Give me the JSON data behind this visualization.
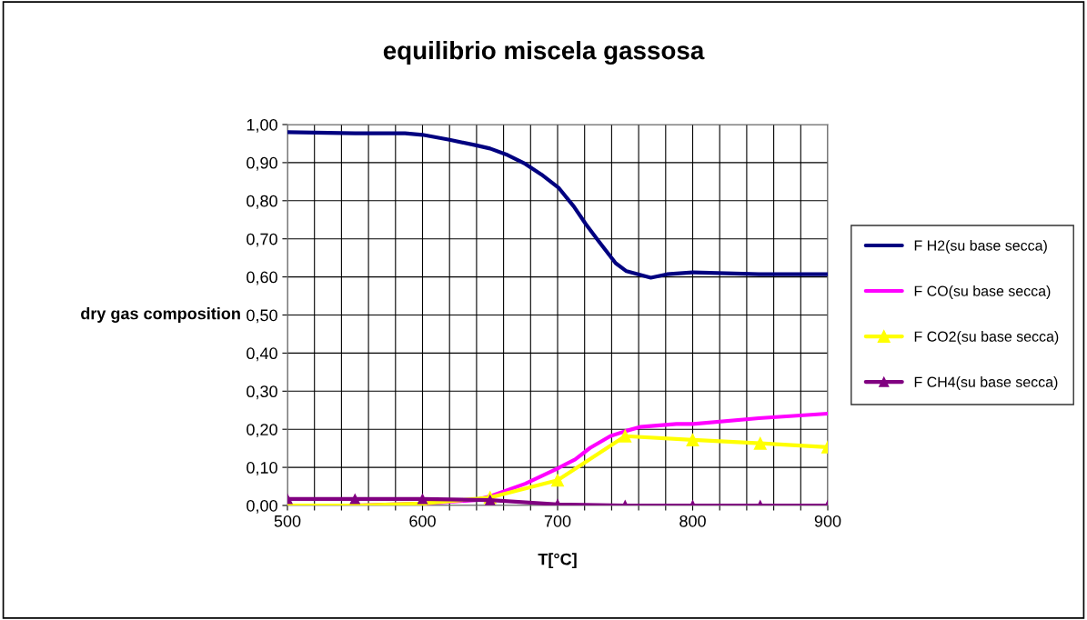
{
  "chart_data": {
    "type": "line",
    "title": "equilibrio miscela gassosa",
    "xlabel": "T[°C]",
    "ylabel": "dry gas composition",
    "xlim": [
      500,
      900
    ],
    "xticks": [
      500,
      {
        "value": 520,
        "label": null
      },
      {
        "value": 540,
        "label": null
      },
      {
        "value": 560,
        "label": null
      },
      {
        "value": 580,
        "label": null
      },
      600,
      {
        "value": 620,
        "label": null
      },
      {
        "value": 640,
        "label": null
      },
      {
        "value": 660,
        "label": null
      },
      {
        "value": 680,
        "label": null
      },
      700,
      {
        "value": 720,
        "label": null
      },
      {
        "value": 740,
        "label": null
      },
      {
        "value": 760,
        "label": null
      },
      {
        "value": 780,
        "label": null
      },
      800,
      {
        "value": 820,
        "label": null
      },
      {
        "value": 840,
        "label": null
      },
      {
        "value": 860,
        "label": null
      },
      {
        "value": 880,
        "label": null
      },
      900
    ],
    "ylim": [
      0,
      1
    ],
    "yticks": [
      {
        "value": 0,
        "label": "0,00"
      },
      {
        "value": 0.1,
        "label": "0,10"
      },
      {
        "value": 0.2,
        "label": "0,20"
      },
      {
        "value": 0.3,
        "label": "0,30"
      },
      {
        "value": 0.4,
        "label": "0,40"
      },
      {
        "value": 0.5,
        "label": "0,50"
      },
      {
        "value": 0.6,
        "label": "0,60"
      },
      {
        "value": 0.7,
        "label": "0,70"
      },
      {
        "value": 0.8,
        "label": "0,80"
      },
      {
        "value": 0.9,
        "label": "0,90"
      },
      {
        "value": 1.0,
        "label": "1,00"
      }
    ],
    "grid": true,
    "legend": "right",
    "series": [
      {
        "name": "F H2(su base secca)",
        "color": "#000080",
        "marker": "none",
        "x": [
          500,
          550,
          587,
          600,
          620,
          639,
          650,
          663,
          676,
          688,
          701,
          712,
          721,
          731,
          743,
          751,
          769,
          781,
          800,
          849,
          900
        ],
        "values": [
          0.98,
          0.977,
          0.977,
          0.973,
          0.96,
          0.946,
          0.937,
          0.92,
          0.897,
          0.869,
          0.833,
          0.785,
          0.738,
          0.691,
          0.636,
          0.615,
          0.598,
          0.607,
          0.612,
          0.607,
          0.607
        ]
      },
      {
        "name": "F CO(su base secca)",
        "color": "#ff00ff",
        "marker": "none",
        "x": [
          500,
          550,
          600,
          639,
          650,
          676,
          701,
          713,
          724,
          739,
          751,
          761,
          788,
          800,
          849,
          900
        ],
        "values": [
          0.0,
          0.0,
          0.005,
          0.014,
          0.024,
          0.057,
          0.099,
          0.121,
          0.151,
          0.182,
          0.196,
          0.206,
          0.214,
          0.214,
          0.229,
          0.241
        ]
      },
      {
        "name": "F CO2(su base secca)",
        "color": "#ffff00",
        "marker": "triangle",
        "x": [
          500,
          550,
          600,
          650,
          700,
          750,
          800,
          850,
          900
        ],
        "values": [
          0.0,
          0.0,
          0.005,
          0.021,
          0.066,
          0.182,
          0.172,
          0.163,
          0.153
        ]
      },
      {
        "name": "F CH4(su base secca)",
        "color": "#800080",
        "marker": "triangle",
        "x": [
          500,
          550,
          600,
          650,
          700,
          750,
          800,
          850,
          900
        ],
        "values": [
          0.017,
          0.017,
          0.017,
          0.014,
          0.003,
          0.0,
          0.0,
          0.0,
          0.0
        ]
      }
    ]
  }
}
